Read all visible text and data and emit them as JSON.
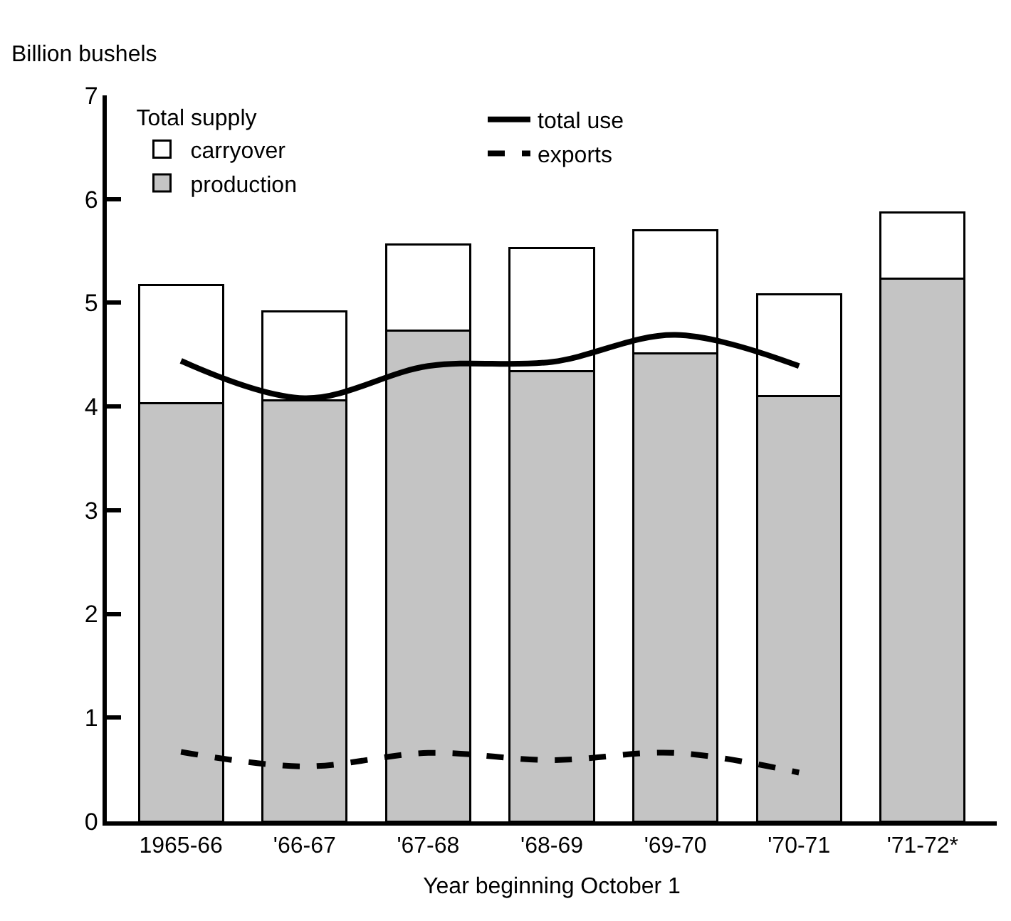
{
  "chart_data": {
    "type": "bar",
    "stacked": true,
    "ylabel": "Billion bushels",
    "xlabel": "Year beginning October 1",
    "categories": [
      "1965-66",
      "'66-67",
      "'67-68",
      "'68-69",
      "'69-70",
      "'70-71",
      "'71-72*"
    ],
    "ylim": [
      0,
      7
    ],
    "yticks": [
      0,
      1,
      2,
      3,
      4,
      5,
      6,
      7
    ],
    "legend": "top left",
    "legend_title": "Total supply",
    "series": [
      {
        "name": "production",
        "color": "#c4c4c4",
        "values": [
          4.03,
          4.06,
          4.73,
          4.34,
          4.51,
          4.1,
          5.23
        ]
      },
      {
        "name": "carryover",
        "color": "#ffffff",
        "values": [
          1.14,
          0.86,
          0.83,
          1.19,
          1.19,
          0.98,
          0.64
        ]
      },
      {
        "name": "total use",
        "type": "line",
        "color": "#000000",
        "line_style": "solid",
        "values": [
          4.44,
          4.08,
          4.39,
          4.43,
          4.69,
          4.39,
          null
        ]
      },
      {
        "name": "exports",
        "type": "line",
        "color": "#000000",
        "line_style": "dashed",
        "values": [
          0.67,
          0.53,
          0.66,
          0.59,
          0.66,
          0.47,
          null
        ]
      }
    ]
  }
}
